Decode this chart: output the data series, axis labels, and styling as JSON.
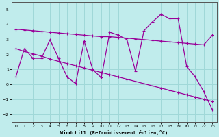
{
  "xlabel": "Windchill (Refroidissement éolien,°C)",
  "bg_color": "#c0ecec",
  "grid_color": "#a0d8d8",
  "line_color": "#990099",
  "xlim": [
    -0.5,
    23.5
  ],
  "ylim": [
    -2.5,
    5.5
  ],
  "yticks": [
    -2,
    -1,
    0,
    1,
    2,
    3,
    4,
    5
  ],
  "xticks": [
    0,
    1,
    2,
    3,
    4,
    5,
    6,
    7,
    8,
    9,
    10,
    11,
    12,
    13,
    14,
    15,
    16,
    17,
    18,
    19,
    20,
    21,
    22,
    23
  ],
  "series1_x": [
    0,
    1,
    2,
    3,
    4,
    5,
    6,
    7,
    8,
    9,
    10,
    11,
    12,
    13,
    14,
    15,
    16,
    17,
    18,
    19,
    20,
    21,
    22,
    23
  ],
  "series1_y": [
    3.7,
    3.65,
    3.6,
    3.55,
    3.5,
    3.45,
    3.4,
    3.35,
    3.3,
    3.25,
    3.2,
    3.2,
    3.15,
    3.1,
    3.05,
    3.0,
    2.95,
    2.9,
    2.85,
    2.8,
    2.75,
    2.7,
    2.65,
    3.3
  ],
  "series2_x": [
    0,
    1,
    2,
    3,
    4,
    5,
    6,
    7,
    8,
    9,
    10,
    11,
    12,
    13,
    14,
    15,
    16,
    17,
    18,
    19,
    20,
    21,
    22,
    23
  ],
  "series2_y": [
    2.4,
    2.2,
    2.05,
    1.9,
    1.7,
    1.55,
    1.4,
    1.25,
    1.1,
    0.95,
    0.8,
    0.65,
    0.5,
    0.35,
    0.2,
    0.05,
    -0.1,
    -0.25,
    -0.4,
    -0.55,
    -0.7,
    -0.85,
    -1.0,
    -1.15
  ],
  "series3_x": [
    0,
    1,
    2,
    3,
    4,
    5,
    6,
    7,
    8,
    9,
    10,
    11,
    12,
    13,
    14,
    15,
    16,
    17,
    18,
    19,
    20,
    21,
    22,
    23
  ],
  "series3_y": [
    0.5,
    2.4,
    1.75,
    1.75,
    3.0,
    1.75,
    0.5,
    0.05,
    2.9,
    1.0,
    0.45,
    3.5,
    3.3,
    3.0,
    0.9,
    3.6,
    4.2,
    4.7,
    4.4,
    4.4,
    1.2,
    0.5,
    -0.5,
    -1.7
  ]
}
